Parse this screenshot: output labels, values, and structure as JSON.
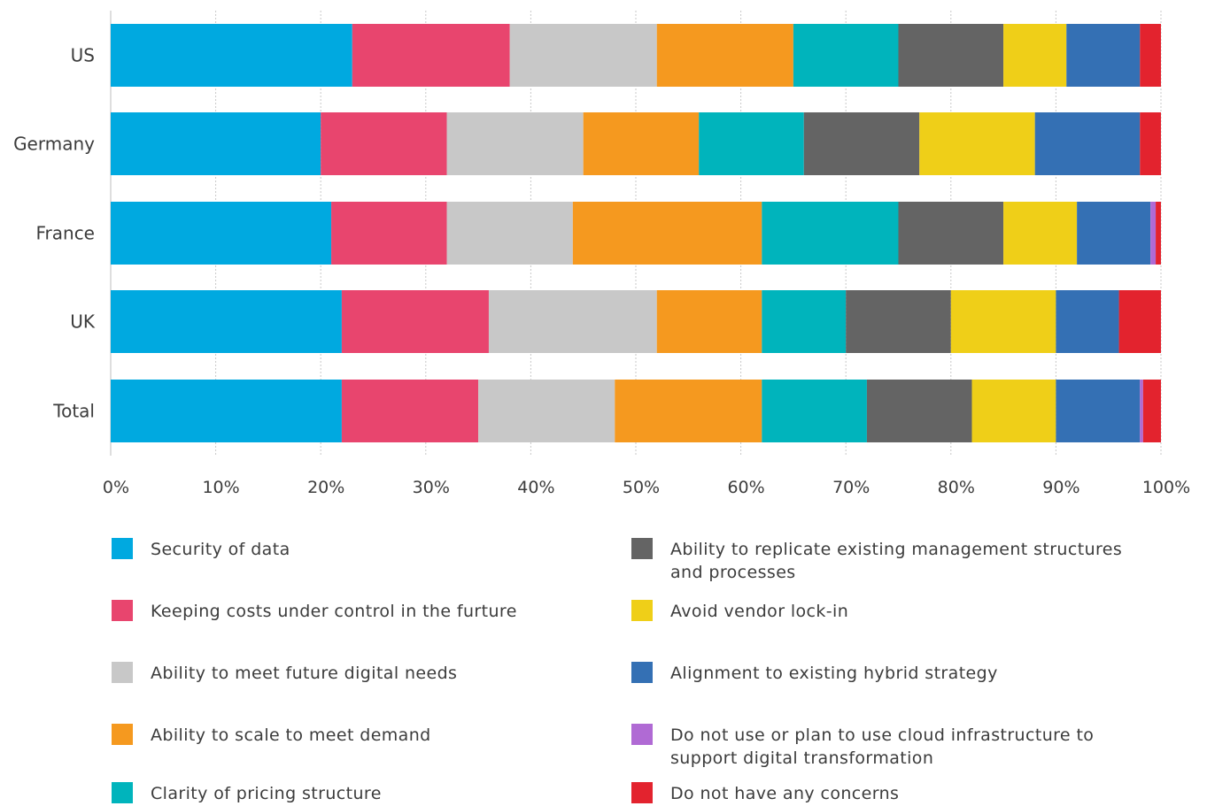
{
  "chart_data": {
    "type": "bar",
    "orientation": "horizontal",
    "stacked": true,
    "title": "",
    "xlabel": "",
    "ylabel": "",
    "xlim": [
      0,
      100
    ],
    "x_ticks": [
      "0%",
      "10%",
      "20%",
      "30%",
      "40%",
      "50%",
      "60%",
      "70%",
      "80%",
      "90%",
      "100%"
    ],
    "grid": "vertical",
    "legend_position": "bottom",
    "categories": [
      "US",
      "Germany",
      "France",
      "UK",
      "Total"
    ],
    "series": [
      {
        "name": "Security of data",
        "color": "#00a9e0",
        "values": [
          23,
          20,
          21,
          22,
          22
        ]
      },
      {
        "name": "Keeping costs under control in the furture",
        "color": "#e8456e",
        "values": [
          15,
          12,
          11,
          14,
          13
        ]
      },
      {
        "name": "Ability to meet future digital needs",
        "color": "#c8c8c8",
        "values": [
          14,
          13,
          12,
          16,
          13
        ]
      },
      {
        "name": "Ability to scale to meet demand",
        "color": "#f5991f",
        "values": [
          13,
          11,
          18,
          10,
          14
        ]
      },
      {
        "name": "Clarity of pricing structure",
        "color": "#00b4bc",
        "values": [
          10,
          10,
          13,
          8,
          10
        ]
      },
      {
        "name": "Ability to replicate existing management structures and processes",
        "color": "#646464",
        "values": [
          10,
          11,
          10,
          10,
          10
        ]
      },
      {
        "name": "Avoid vendor lock-in",
        "color": "#efcf18",
        "values": [
          6,
          11,
          7,
          10,
          8
        ]
      },
      {
        "name": "Alignment to existing hybrid strategy",
        "color": "#3470b4",
        "values": [
          7,
          10,
          7,
          6,
          8
        ]
      },
      {
        "name": "Do not use or plan to use cloud infrastructure to support digital transformation",
        "color": "#b06ad4",
        "values": [
          0,
          0,
          0.5,
          0,
          0.3
        ]
      },
      {
        "name": "Do not have any concerns",
        "color": "#e3232e",
        "values": [
          2,
          2,
          0.5,
          4,
          1.7
        ]
      }
    ]
  }
}
